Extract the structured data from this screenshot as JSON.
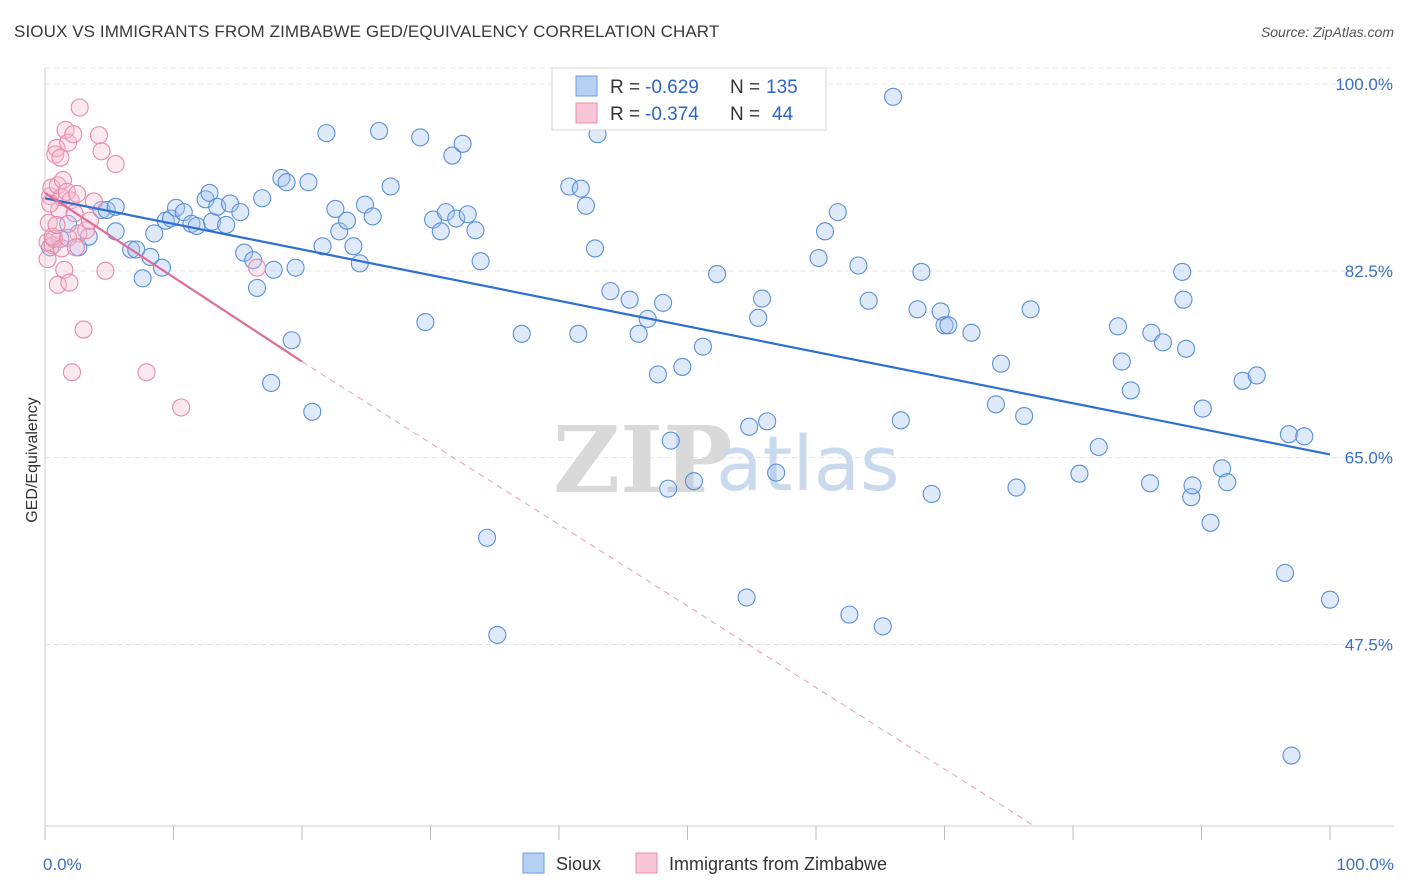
{
  "title": "SIOUX VS IMMIGRANTS FROM ZIMBABWE GED/EQUIVALENCY CORRELATION CHART",
  "source": "Source: ZipAtlas.com",
  "watermark": {
    "zip": "ZIP",
    "atlas": "atlas"
  },
  "chart_data": {
    "type": "scatter",
    "ylabel": "GED/Equivalency",
    "xlim": [
      0,
      100
    ],
    "ylim": [
      30.5,
      101.5
    ],
    "x_tick_labels": [
      {
        "value": 0,
        "label": "0.0%"
      },
      {
        "value": 100,
        "label": "100.0%"
      }
    ],
    "y_ticks": [
      {
        "value": 100.0,
        "label": "100.0%"
      },
      {
        "value": 82.5,
        "label": "82.5%"
      },
      {
        "value": 65.0,
        "label": "65.0%"
      },
      {
        "value": 47.5,
        "label": "47.5%"
      }
    ],
    "grid": true,
    "legend": {
      "position": "top-center",
      "entries": [
        {
          "r_label": "R =",
          "r_value": "-0.629",
          "n_label": "N =",
          "n_value": "135",
          "color": "#a9c8f0",
          "stroke": "#6b9de0"
        },
        {
          "r_label": "R =",
          "r_value": "-0.374",
          "n_label": "N =",
          "n_value": "44",
          "color": "#f7bfd0",
          "stroke": "#e78fac"
        }
      ]
    },
    "series": [
      {
        "name": "Sioux",
        "color": "#5b8fd9",
        "fill": "rgba(160,196,240,0.35)",
        "trend": {
          "x0": 0,
          "y0": 89.3,
          "x1": 100,
          "y1": 65.3,
          "color": "#2f6fd0"
        },
        "points": [
          [
            0.4,
            84.7
          ],
          [
            1.2,
            85.5
          ],
          [
            1.8,
            86.9
          ],
          [
            2.6,
            84.7
          ],
          [
            3.4,
            85.7
          ],
          [
            4.4,
            88.2
          ],
          [
            4.8,
            88.2
          ],
          [
            5.5,
            88.5
          ],
          [
            5.5,
            86.2
          ],
          [
            6.7,
            84.5
          ],
          [
            7.1,
            84.5
          ],
          [
            7.6,
            81.8
          ],
          [
            8.2,
            83.8
          ],
          [
            8.5,
            86.0
          ],
          [
            9.1,
            82.8
          ],
          [
            9.4,
            87.2
          ],
          [
            9.8,
            87.4
          ],
          [
            10.2,
            88.4
          ],
          [
            10.8,
            88.0
          ],
          [
            11.4,
            86.9
          ],
          [
            11.8,
            86.7
          ],
          [
            12.5,
            89.2
          ],
          [
            12.8,
            89.8
          ],
          [
            13.0,
            87.1
          ],
          [
            13.4,
            88.5
          ],
          [
            14.1,
            86.8
          ],
          [
            14.4,
            88.8
          ],
          [
            15.2,
            88.0
          ],
          [
            15.5,
            84.2
          ],
          [
            16.2,
            83.5
          ],
          [
            16.5,
            80.9
          ],
          [
            16.9,
            89.3
          ],
          [
            17.6,
            72.0
          ],
          [
            17.8,
            82.6
          ],
          [
            18.4,
            91.2
          ],
          [
            18.8,
            90.8
          ],
          [
            19.2,
            76.0
          ],
          [
            19.5,
            82.8
          ],
          [
            20.5,
            90.8
          ],
          [
            20.8,
            69.3
          ],
          [
            21.6,
            84.8
          ],
          [
            21.9,
            95.4
          ],
          [
            22.6,
            88.3
          ],
          [
            22.9,
            86.2
          ],
          [
            23.5,
            87.2
          ],
          [
            24.0,
            84.8
          ],
          [
            24.5,
            83.2
          ],
          [
            24.9,
            88.7
          ],
          [
            25.5,
            87.6
          ],
          [
            26.0,
            95.6
          ],
          [
            26.9,
            90.4
          ],
          [
            29.2,
            95.0
          ],
          [
            29.6,
            77.7
          ],
          [
            30.2,
            87.3
          ],
          [
            30.8,
            86.2
          ],
          [
            31.2,
            88.0
          ],
          [
            31.7,
            93.3
          ],
          [
            32.0,
            87.4
          ],
          [
            32.5,
            94.4
          ],
          [
            32.9,
            87.8
          ],
          [
            33.5,
            86.3
          ],
          [
            33.9,
            83.4
          ],
          [
            34.4,
            57.5
          ],
          [
            35.2,
            48.4
          ],
          [
            37.1,
            76.6
          ],
          [
            40.8,
            90.4
          ],
          [
            41.5,
            76.6
          ],
          [
            41.7,
            90.2
          ],
          [
            42.1,
            88.6
          ],
          [
            42.8,
            84.6
          ],
          [
            43.0,
            95.3
          ],
          [
            44.0,
            80.6
          ],
          [
            45.5,
            79.8
          ],
          [
            46.2,
            76.6
          ],
          [
            46.9,
            78.0
          ],
          [
            47.7,
            72.8
          ],
          [
            48.1,
            79.5
          ],
          [
            48.5,
            62.1
          ],
          [
            48.7,
            66.6
          ],
          [
            49.6,
            73.5
          ],
          [
            50.5,
            62.8
          ],
          [
            51.2,
            75.4
          ],
          [
            52.3,
            82.2
          ],
          [
            54.6,
            51.9
          ],
          [
            54.8,
            67.9
          ],
          [
            55.5,
            78.1
          ],
          [
            55.8,
            79.9
          ],
          [
            56.2,
            68.4
          ],
          [
            56.9,
            63.6
          ],
          [
            60.2,
            83.7
          ],
          [
            60.7,
            86.2
          ],
          [
            61.7,
            88.0
          ],
          [
            62.6,
            50.3
          ],
          [
            63.3,
            83.0
          ],
          [
            64.1,
            79.7
          ],
          [
            65.2,
            49.2
          ],
          [
            66.0,
            98.8
          ],
          [
            66.6,
            68.5
          ],
          [
            67.9,
            78.9
          ],
          [
            68.2,
            82.4
          ],
          [
            69.0,
            61.6
          ],
          [
            69.7,
            78.7
          ],
          [
            70.0,
            77.4
          ],
          [
            70.3,
            77.4
          ],
          [
            72.1,
            76.7
          ],
          [
            74.0,
            70.0
          ],
          [
            74.4,
            73.8
          ],
          [
            75.6,
            62.2
          ],
          [
            76.2,
            68.9
          ],
          [
            76.7,
            78.9
          ],
          [
            80.5,
            63.5
          ],
          [
            82.0,
            66.0
          ],
          [
            83.5,
            77.3
          ],
          [
            83.8,
            74.0
          ],
          [
            84.5,
            71.3
          ],
          [
            86.0,
            62.6
          ],
          [
            86.1,
            76.7
          ],
          [
            87.0,
            75.8
          ],
          [
            88.5,
            82.4
          ],
          [
            88.6,
            79.8
          ],
          [
            88.8,
            75.2
          ],
          [
            89.2,
            61.3
          ],
          [
            89.3,
            62.4
          ],
          [
            90.1,
            69.6
          ],
          [
            90.7,
            58.9
          ],
          [
            91.6,
            64.0
          ],
          [
            92.0,
            62.7
          ],
          [
            93.2,
            72.2
          ],
          [
            94.3,
            72.7
          ],
          [
            96.5,
            54.2
          ],
          [
            96.8,
            67.2
          ],
          [
            97.0,
            37.1
          ],
          [
            98.0,
            67.0
          ],
          [
            100.0,
            51.7
          ]
        ]
      },
      {
        "name": "Immigrants from Zimbabwe",
        "color": "#e88aa8",
        "fill": "rgba(247,190,208,0.35)",
        "trend": {
          "x0": 0,
          "y0": 89.8,
          "x1": 20,
          "y1": 74.0,
          "color": "#e06d97"
        },
        "trend_extension": {
          "x0": 20,
          "y0": 74.0,
          "x1": 77,
          "y1": 30.5,
          "color": "#ee9ab8"
        },
        "points": [
          [
            0.2,
            85.2
          ],
          [
            0.3,
            87.0
          ],
          [
            0.4,
            89.5
          ],
          [
            0.5,
            90.3
          ],
          [
            0.6,
            84.9
          ],
          [
            0.7,
            85.5
          ],
          [
            0.8,
            93.4
          ],
          [
            0.9,
            94.0
          ],
          [
            1.0,
            90.5
          ],
          [
            1.0,
            81.2
          ],
          [
            1.1,
            88.2
          ],
          [
            1.2,
            93.1
          ],
          [
            1.3,
            89.4
          ],
          [
            1.4,
            91.0
          ],
          [
            1.5,
            82.6
          ],
          [
            1.6,
            95.7
          ],
          [
            1.7,
            89.9
          ],
          [
            1.8,
            94.5
          ],
          [
            1.9,
            81.4
          ],
          [
            2.0,
            89.1
          ],
          [
            2.1,
            73.0
          ],
          [
            2.2,
            95.3
          ],
          [
            2.3,
            87.9
          ],
          [
            2.5,
            89.7
          ],
          [
            2.6,
            86.0
          ],
          [
            2.7,
            97.8
          ],
          [
            3.0,
            77.0
          ],
          [
            3.2,
            86.3
          ],
          [
            3.5,
            87.2
          ],
          [
            3.8,
            89.0
          ],
          [
            4.2,
            95.2
          ],
          [
            4.4,
            93.7
          ],
          [
            4.7,
            82.5
          ],
          [
            5.5,
            92.5
          ],
          [
            7.9,
            73.0
          ],
          [
            10.6,
            69.7
          ],
          [
            16.5,
            82.8
          ],
          [
            0.4,
            88.8
          ],
          [
            0.6,
            85.7
          ],
          [
            0.9,
            86.8
          ],
          [
            1.3,
            84.6
          ],
          [
            1.8,
            85.6
          ],
          [
            2.4,
            84.7
          ],
          [
            0.2,
            83.6
          ]
        ]
      }
    ]
  }
}
